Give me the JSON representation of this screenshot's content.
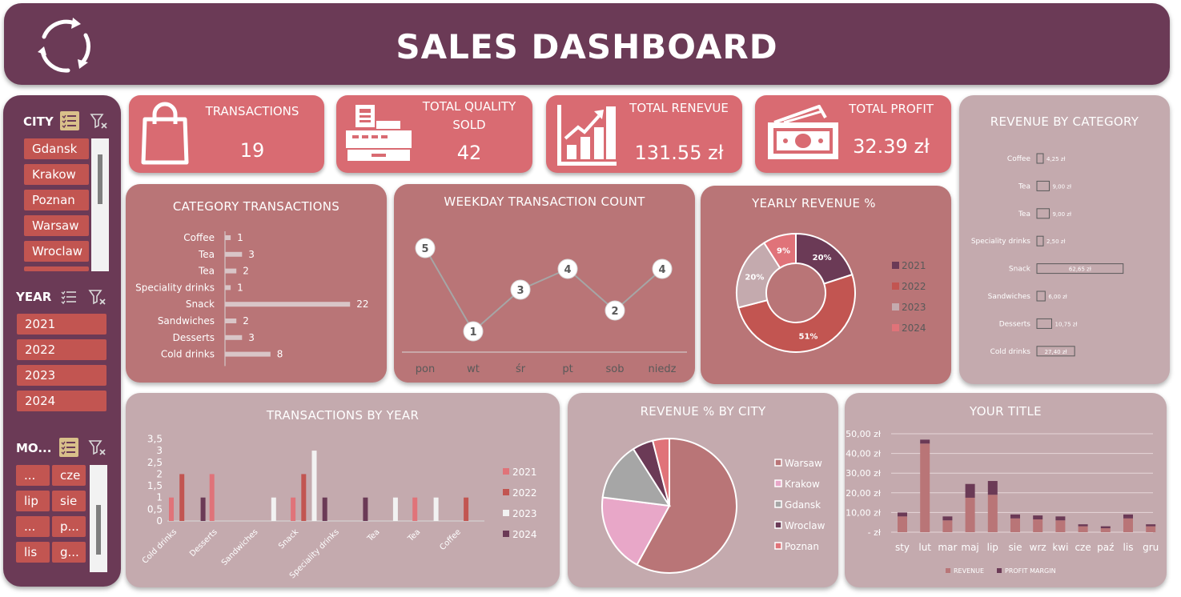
{
  "header": {
    "title": "SALES DASHBOARD"
  },
  "sidebar": {
    "city_label": "CITY",
    "cities": [
      "Gdansk",
      "Krakow",
      "Poznan",
      "Warsaw",
      "Wroclaw"
    ],
    "year_label": "YEAR",
    "years": [
      "2021",
      "2022",
      "2023",
      "2024"
    ],
    "month_label": "MO...",
    "months": [
      "...",
      "cze",
      "lip",
      "sie",
      "...",
      "p...",
      "lis",
      "g..."
    ]
  },
  "kpis": {
    "transactions": {
      "label": "TRANSACTIONS",
      "value": "19"
    },
    "quantity": {
      "label1": "TOTAL QUALITY",
      "label2": "SOLD",
      "value": "42"
    },
    "revenue": {
      "label": "TOTAL RENEVUE",
      "value": "131.55 zł"
    },
    "profit": {
      "label": "TOTAL PROFIT",
      "value": "32.39 zł"
    }
  },
  "colors": {
    "plum": "#6b3a56",
    "rose": "#d96b72",
    "card": "#b97577",
    "card_light": "#c4aaae",
    "button": "#c25551"
  },
  "chart_data": [
    {
      "id": "category_transactions",
      "type": "bar",
      "title": "CATEGORY TRANSACTIONS",
      "categories": [
        "Coffee",
        "Tea",
        "Tea",
        "Speciality drinks",
        "Snack",
        "Sandwiches",
        "Desserts",
        "Cold drinks"
      ],
      "values": [
        1,
        3,
        2,
        1,
        22,
        2,
        3,
        8
      ]
    },
    {
      "id": "weekday_transactions",
      "type": "line",
      "title": "WEEKDAY TRANSACTION COUNT",
      "categories": [
        "pon",
        "wt",
        "śr",
        "pt",
        "sob",
        "niedz"
      ],
      "values": [
        5,
        1,
        3,
        4,
        2,
        4
      ]
    },
    {
      "id": "yearly_revenue",
      "type": "pie",
      "title": "YEARLY REVENUE %",
      "labels": [
        "2021",
        "2022",
        "2023",
        "2024"
      ],
      "values": [
        20,
        51,
        20,
        9
      ],
      "value_labels": [
        "20%",
        "51%",
        "20%",
        "9%"
      ],
      "colors": [
        "#6b3a56",
        "#c25551",
        "#c4aaae",
        "#e07379"
      ],
      "legend": "right"
    },
    {
      "id": "revenue_by_category",
      "type": "bar",
      "title": "REVENUE BY CATEGORY",
      "categories": [
        "Coffee",
        "Tea",
        "Tea",
        "Speciality drinks",
        "Snack",
        "Sandwiches",
        "Desserts",
        "Cold drinks"
      ],
      "values": [
        4.25,
        9.0,
        9.0,
        2.5,
        62.65,
        6.0,
        10.75,
        27.4
      ],
      "value_labels": [
        "4,25 zł",
        "9,00 zł",
        "9,00 zł",
        "2,50 zł",
        "62,65 zł",
        "6,00 zł",
        "10,75 zł",
        "27,40 zł"
      ]
    },
    {
      "id": "transactions_by_year",
      "type": "bar",
      "title": "TRANSACTIONS BY YEAR",
      "categories": [
        "Cold drinks",
        "Desserts",
        "Sandwiches",
        "Snack",
        "Speciality drinks",
        "Tea",
        "Tea",
        "Coffee"
      ],
      "series": [
        {
          "name": "2021",
          "values": [
            1,
            2,
            0,
            1,
            0,
            0,
            1,
            0
          ],
          "color": "#e07379"
        },
        {
          "name": "2022",
          "values": [
            2,
            0,
            0,
            2,
            0,
            0,
            0,
            1
          ],
          "color": "#c25551"
        },
        {
          "name": "2023",
          "values": [
            0,
            0,
            1,
            3,
            0,
            1,
            1,
            0
          ],
          "color": "#f2f2f2"
        },
        {
          "name": "2024",
          "values": [
            1,
            0,
            0,
            1,
            1,
            0,
            0,
            0
          ],
          "color": "#6b3a56"
        }
      ],
      "yticks": [
        "3,5",
        "3",
        "2,5",
        "2",
        "1,5",
        "1",
        "0,5",
        "0"
      ],
      "ylim": [
        0,
        3.5
      ],
      "legend": "right"
    },
    {
      "id": "revenue_by_city",
      "type": "pie",
      "title": "REVENUE % BY CITY",
      "labels": [
        "Warsaw",
        "Krakow",
        "Gdansk",
        "Wroclaw",
        "Poznan"
      ],
      "values": [
        58,
        19,
        14,
        5,
        4
      ],
      "colors": [
        "#b97577",
        "#e8a7c8",
        "#a6a6a6",
        "#6b3a56",
        "#e07379"
      ],
      "legend": "right"
    },
    {
      "id": "your_title",
      "type": "bar",
      "title": "YOUR TITLE",
      "categories": [
        "sty",
        "lut",
        "mar",
        "maj",
        "lip",
        "sie",
        "wrz",
        "kwi",
        "cze",
        "paź",
        "lis",
        "gru"
      ],
      "series": [
        {
          "name": "REVENUE",
          "values": [
            8,
            45,
            6,
            17.5,
            19,
            7,
            6.5,
            6,
            3,
            2,
            7,
            3
          ],
          "color": "#b97577"
        },
        {
          "name": "PROFIT MARGIN",
          "values": [
            2,
            2,
            2,
            7,
            7,
            2,
            2,
            2,
            1,
            1,
            2,
            1
          ],
          "color": "#6b3a56"
        }
      ],
      "yticks": [
        "50,00 zł",
        "40,00 zł",
        "30,00 zł",
        "20,00 zł",
        "10,00 zł",
        "-   zł"
      ],
      "ylim": [
        0,
        50
      ],
      "legend": "bottom"
    }
  ]
}
